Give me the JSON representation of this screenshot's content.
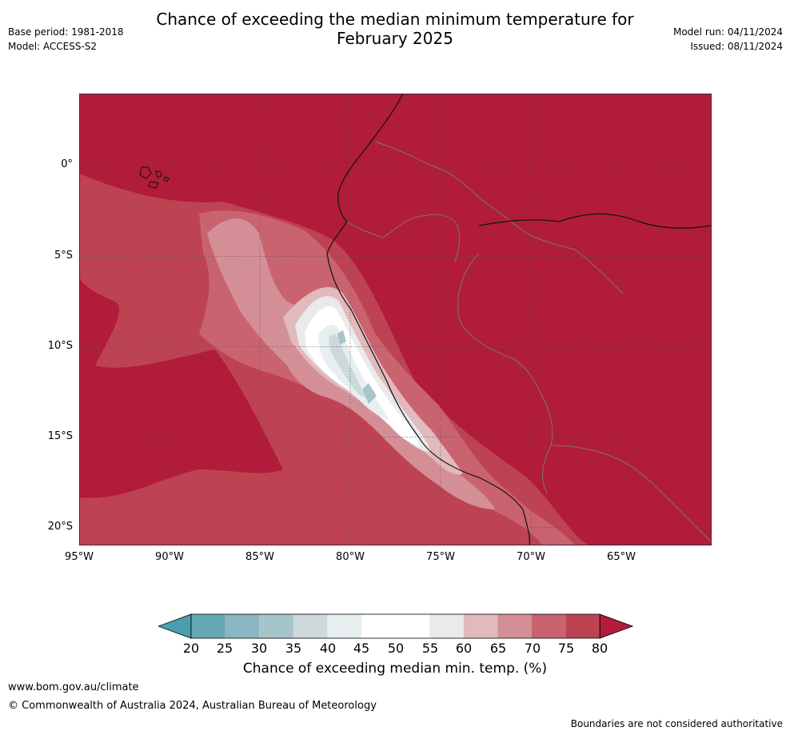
{
  "title_line1": "Chance of exceeding the median minimum temperature for",
  "title_line2": "February 2025",
  "meta": {
    "base_period": "Base period: 1981-2018",
    "model": "Model: ACCESS-S2",
    "model_run": "Model run: 04/11/2024",
    "issued": "Issued: 08/11/2024"
  },
  "map": {
    "lon_range": [
      -95,
      -60
    ],
    "lat_range": [
      -21,
      4
    ],
    "lat_ticks": [
      {
        "value": 0,
        "label": "0°"
      },
      {
        "value": -5,
        "label": "5°S"
      },
      {
        "value": -10,
        "label": "10°S"
      },
      {
        "value": -15,
        "label": "15°S"
      },
      {
        "value": -20,
        "label": "20°S"
      }
    ],
    "lon_ticks": [
      {
        "value": -95,
        "label": "95°W"
      },
      {
        "value": -90,
        "label": "90°W"
      },
      {
        "value": -85,
        "label": "85°W"
      },
      {
        "value": -80,
        "label": "80°W"
      },
      {
        "value": -75,
        "label": "75°W"
      },
      {
        "value": -70,
        "label": "70°W"
      },
      {
        "value": -65,
        "label": "65°W"
      }
    ],
    "colors": {
      "high": "#b11c3a",
      "c75": "#be4352",
      "c70": "#c9636f",
      "c65": "#d48f96",
      "c60": "#e2b9bd",
      "c55": "#eaeaea",
      "white": "#ffffff",
      "c40": "#e7eef0",
      "c35": "#ccd8da",
      "c30": "#a6c5cb"
    }
  },
  "colorbar": {
    "labels": [
      "20",
      "25",
      "30",
      "35",
      "40",
      "45",
      "50",
      "55",
      "60",
      "65",
      "70",
      "75",
      "80"
    ],
    "colors": [
      "#67a8b6",
      "#8ab6c1",
      "#a6c5cb",
      "#ccd8da",
      "#e7eef0",
      "#ffffff",
      "#ffffff",
      "#eaeaea",
      "#e2b9bd",
      "#d48f96",
      "#c9636f",
      "#be4352"
    ],
    "low_extend_color": "#4a9fae",
    "high_extend_color": "#b11c3a",
    "title": "Chance of exceeding median min. temp. (%)"
  },
  "footer": {
    "url": "www.bom.gov.au/climate",
    "copyright": "© Commonwealth of Australia 2024, Australian Bureau of Meteorology",
    "note": "Boundaries are not considered authoritative"
  }
}
